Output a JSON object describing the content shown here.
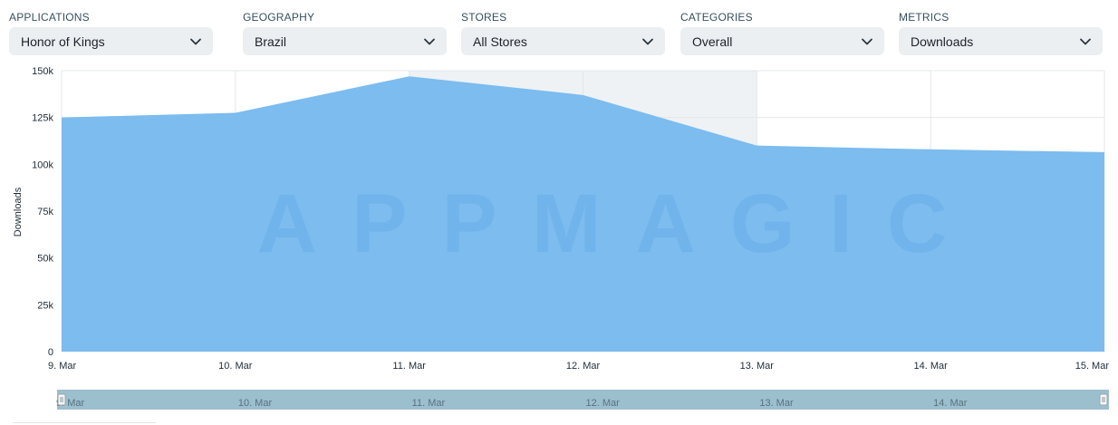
{
  "filters": [
    {
      "label": "APPLICATIONS",
      "value": "Honor of Kings"
    },
    {
      "label": "GEOGRAPHY",
      "value": "Brazil"
    },
    {
      "label": "STORES",
      "value": "All Stores"
    },
    {
      "label": "CATEGORIES",
      "value": "Overall"
    },
    {
      "label": "METRICS",
      "value": "Downloads"
    }
  ],
  "watermark": "APPMAGIC",
  "colors": {
    "area": "#7cbcef",
    "highlight_band": "#eef2f5",
    "grid": "#e4e7ea",
    "navigator_bg": "#9bbfcd"
  },
  "chart_data": {
    "type": "area",
    "x": [
      "9. Mar",
      "10. Mar",
      "11. Mar",
      "12. Mar",
      "13. Mar",
      "14. Mar",
      "15. Mar"
    ],
    "series": [
      {
        "values": [
          125000,
          127500,
          147000,
          137000,
          110000,
          108000,
          106500
        ]
      }
    ],
    "ylabel": "Downloads",
    "ylim": [
      0,
      150000
    ],
    "yticks": [
      "0",
      "25k",
      "50k",
      "75k",
      "100k",
      "125k",
      "150k"
    ],
    "highlight_range": [
      "11. Mar",
      "13. Mar"
    ],
    "grid": true,
    "navigator_labels": [
      "9. Mar",
      "10. Mar",
      "11. Mar",
      "12. Mar",
      "13. Mar",
      "14. Mar"
    ]
  }
}
